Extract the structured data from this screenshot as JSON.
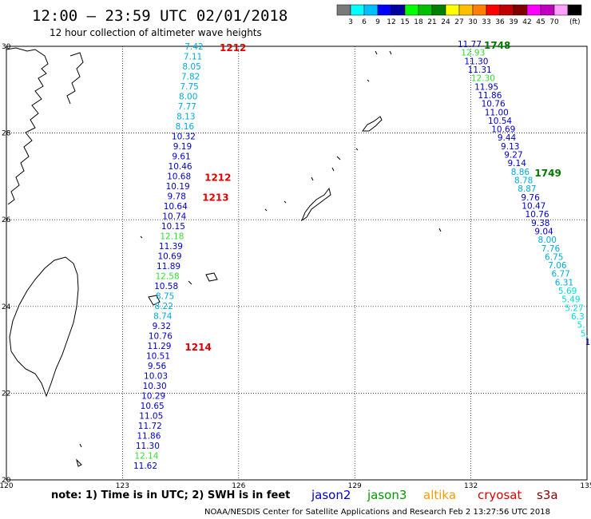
{
  "header": {
    "title": "12:00 – 23:59 UTC 02/01/2018",
    "subtitle": "12 hour collection of altimeter wave heights",
    "colorbar": {
      "unit": "(ft)",
      "colors": [
        "#7a7a7a",
        "#00ffff",
        "#00bfff",
        "#0000ff",
        "#0000a0",
        "#00ff00",
        "#00c000",
        "#008000",
        "#ffff00",
        "#ffbf00",
        "#ff8000",
        "#ff0000",
        "#c00000",
        "#800000",
        "#ff00ff",
        "#c000c0",
        "#ffa0ff",
        "#000000"
      ],
      "labels": [
        "3",
        "6",
        "9",
        "12",
        "15",
        "18",
        "21",
        "24",
        "27",
        "30",
        "33",
        "36",
        "39",
        "42",
        "45",
        "70"
      ]
    }
  },
  "axes": {
    "lon_labels": [
      "120",
      "123",
      "126",
      "129",
      "132",
      "135"
    ],
    "lat_labels": [
      "30",
      "28",
      "26",
      "24",
      "22",
      "20"
    ]
  },
  "tracks": {
    "west": {
      "values": [
        "7.42",
        "7.11",
        "8.05",
        "7.82",
        "7.75",
        "8.00",
        "7.77",
        "8.13",
        "8.16",
        "10.32",
        "9.19",
        "9.61",
        "10.46",
        "10.68",
        "10.19",
        "9.78",
        "10.64",
        "10.74",
        "10.15",
        "12.18",
        "11.39",
        "10.69",
        "11.89",
        "12.58",
        "10.58",
        "8.75",
        "8.22",
        "8.74",
        "9.32",
        "10.76",
        "11.29",
        "10.51",
        "9.56",
        "10.03",
        "10.30",
        "10.29",
        "10.65",
        "11.05",
        "11.72",
        "11.86",
        "11.30",
        "12.14",
        "11.62"
      ],
      "colors": [
        "#00aadd",
        "#00aadd",
        "#00aadd",
        "#00aadd",
        "#00aadd",
        "#00aadd",
        "#00aadd",
        "#00aadd",
        "#00aadd",
        "#0000cc",
        "#0000cc",
        "#0000cc",
        "#0000cc",
        "#0000cc",
        "#0000cc",
        "#0000cc",
        "#0000cc",
        "#0000cc",
        "#0000cc",
        "#33dd33",
        "#0000cc",
        "#0000cc",
        "#0000cc",
        "#33dd33",
        "#0000cc",
        "#00aadd",
        "#00aadd",
        "#00aadd",
        "#0000cc",
        "#0000cc",
        "#0000cc",
        "#0000cc",
        "#0000cc",
        "#0000cc",
        "#0000cc",
        "#0000cc",
        "#0000cc",
        "#0000cc",
        "#0000cc",
        "#0000cc",
        "#0000cc",
        "#33dd33",
        "#0000cc"
      ],
      "times": [
        {
          "label": "1212",
          "color": "#dd0000",
          "row": 0
        },
        {
          "label": "1212",
          "color": "#dd0000",
          "row": 13
        },
        {
          "label": "1213",
          "color": "#dd0000",
          "row": 15
        },
        {
          "label": "1214",
          "color": "#dd0000",
          "row": 30
        }
      ]
    },
    "east": {
      "values": [
        "11.77",
        "12.93",
        "11.30",
        "11.31",
        "12.30",
        "11.95",
        "11.86",
        "10.76",
        "11.00",
        "10.54",
        "10.69",
        "9.44",
        "9.13",
        "9.27",
        "9.14",
        "8.86",
        "8.78",
        "8.87",
        "9.76",
        "10.47",
        "10.76",
        "9.38",
        "9.04",
        "8.00",
        "7.76",
        "6.75",
        "7.06",
        "6.77",
        "6.31",
        "5.69",
        "5.49",
        "5.27",
        "6.3",
        "5.",
        "5.",
        "1"
      ],
      "colors": [
        "#0000cc",
        "#33dd33",
        "#0000cc",
        "#0000cc",
        "#33dd33",
        "#0000cc",
        "#0000cc",
        "#0000cc",
        "#0000cc",
        "#0000cc",
        "#0000cc",
        "#0000cc",
        "#0000cc",
        "#0000cc",
        "#0000cc",
        "#00aadd",
        "#00aadd",
        "#00aadd",
        "#0000cc",
        "#0000cc",
        "#0000cc",
        "#0000cc",
        "#0000cc",
        "#00aadd",
        "#00aadd",
        "#00aadd",
        "#00aadd",
        "#00aadd",
        "#00aadd",
        "#00dddd",
        "#00dddd",
        "#00dddd",
        "#00dddd",
        "#00dddd",
        "#00dddd",
        "#0000cc"
      ],
      "times": [
        {
          "label": "1748",
          "color": "#007700",
          "row": 0
        },
        {
          "label": "1749",
          "color": "#007700",
          "row": 15
        }
      ]
    }
  },
  "footer": {
    "note": "note: 1) Time is in UTC; 2) SWH is in feet",
    "legend": [
      {
        "label": "jason2",
        "color": "#0000cc"
      },
      {
        "label": "jason3",
        "color": "#009900"
      },
      {
        "label": "altika",
        "color": "#ff9900"
      },
      {
        "label": "cryosat",
        "color": "#dd0000"
      },
      {
        "label": "s3a",
        "color": "#880000"
      }
    ],
    "credit": "NOAA/NESDIS Center for Satellite Applications and Research    Feb  2 13:27:56 UTC 2018"
  }
}
